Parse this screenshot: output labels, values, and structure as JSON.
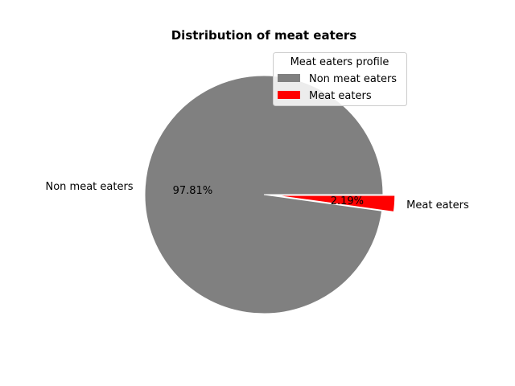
{
  "chart_data": {
    "type": "pie",
    "title": "Distribution of meat eaters",
    "slices": [
      {
        "label": "Non meat eaters",
        "value": 97.81,
        "pct_label": "97.81%",
        "color": "#808080",
        "explode": 0
      },
      {
        "label": "Meat eaters",
        "value": 2.19,
        "pct_label": "2.19%",
        "color": "#ff0000",
        "explode": 0.1
      }
    ],
    "legend": {
      "title": "Meat eaters profile",
      "placement": "upper right",
      "entries": [
        "Non meat eaters",
        "Meat eaters"
      ]
    },
    "start_angle": 0,
    "direction": "counterclockwise",
    "edge_color": "#ffffff"
  }
}
